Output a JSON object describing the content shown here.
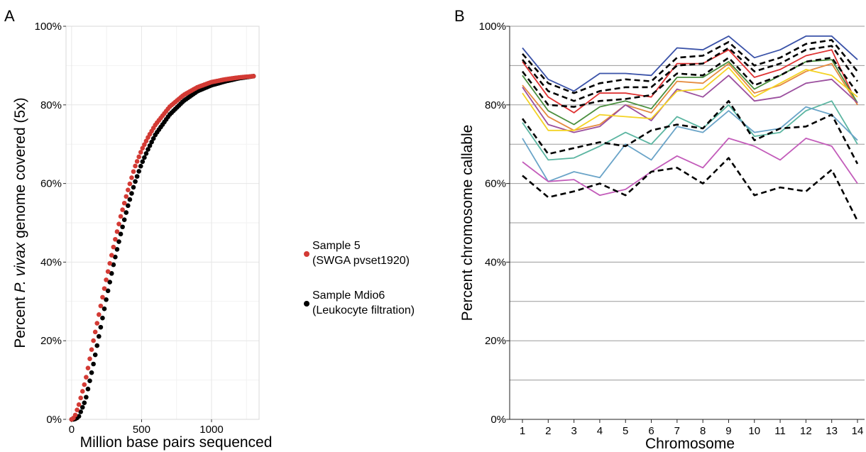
{
  "chart_data": [
    {
      "panel": "A",
      "type": "scatter",
      "xlabel": "Million base pairs sequenced",
      "ylabel_prefix": "Percent ",
      "ylabel_italic": "P. vivax",
      "ylabel_suffix": " genome covered (5x)",
      "xlim": [
        -40,
        1340
      ],
      "ylim": [
        0,
        100
      ],
      "x_ticks": [
        0,
        500,
        1000
      ],
      "x_tick_labels": [
        "0",
        "500",
        "1000"
      ],
      "y_ticks": [
        0,
        20,
        40,
        60,
        80,
        100
      ],
      "y_tick_labels": [
        "0%",
        "20%",
        "40%",
        "60%",
        "80%",
        "100%"
      ],
      "grid": true,
      "legend_position": "right",
      "series": [
        {
          "name_lines": [
            "Sample 5",
            "(SWGA pvset1920)"
          ],
          "color": "#d33a34",
          "curve": {
            "x": [
              0,
              20,
              50,
              100,
              150,
              200,
              250,
              300,
              350,
              400,
              450,
              500,
              550,
              600,
              700,
              800,
              900,
              1000,
              1100,
              1200,
              1300
            ],
            "y": [
              0,
              0.5,
              3.5,
              10,
              19,
              27.5,
              36,
              44,
              51.5,
              58,
              64,
              68.5,
              72,
              75,
              79.5,
              82.5,
              84.5,
              85.8,
              86.5,
              87,
              87.3
            ]
          }
        },
        {
          "name_lines": [
            "Sample Mdio6",
            "(Leukocyte filtration)"
          ],
          "color": "#000000",
          "curve": {
            "x": [
              0,
              20,
              50,
              100,
              150,
              200,
              250,
              300,
              350,
              400,
              450,
              500,
              550,
              600,
              700,
              800,
              900,
              1000,
              1100,
              1200,
              1300
            ],
            "y": [
              0,
              0,
              0.6,
              5,
              13,
              22,
              31,
              39.5,
              47,
              54,
              60,
              65,
              69,
              72.5,
              77.5,
              81,
              83.5,
              85,
              86,
              86.8,
              87.3
            ]
          }
        }
      ]
    },
    {
      "panel": "B",
      "type": "line",
      "xlabel": "Chromosome",
      "ylabel": "Percent chromosome callable",
      "categories": [
        "1",
        "2",
        "3",
        "4",
        "5",
        "6",
        "7",
        "8",
        "9",
        "10",
        "11",
        "12",
        "13",
        "14"
      ],
      "ylim": [
        0,
        100
      ],
      "y_ticks": [
        0,
        20,
        40,
        60,
        80,
        100
      ],
      "y_tick_labels": [
        "0%",
        "20%",
        "40%",
        "60%",
        "80%",
        "100%"
      ],
      "grid": true,
      "series": [
        {
          "color": "#3a52a8",
          "dashed": false,
          "values": [
            94.5,
            86.5,
            83.5,
            88,
            88,
            87.5,
            94.5,
            94,
            97.5,
            92,
            94,
            97.5,
            97.5,
            91.5
          ]
        },
        {
          "color": "#000000",
          "dashed": true,
          "values": [
            93,
            85.5,
            83,
            85.5,
            86.5,
            86,
            92,
            92.5,
            96,
            90,
            92,
            95.5,
            96.5,
            88.5
          ]
        },
        {
          "color": "#000000",
          "dashed": true,
          "values": [
            91.5,
            83.5,
            81,
            83.5,
            84.5,
            84.5,
            90,
            90.5,
            94.5,
            88.5,
            90.5,
            94,
            95,
            86
          ]
        },
        {
          "color": "#df3232",
          "dashed": false,
          "values": [
            91,
            82,
            78,
            83,
            83,
            82,
            90.5,
            90.5,
            94,
            87,
            89,
            92.5,
            94,
            80
          ]
        },
        {
          "color": "#000000",
          "dashed": true,
          "values": [
            88.5,
            80,
            79.5,
            81,
            81.5,
            82.5,
            88,
            87.5,
            92,
            85,
            87.5,
            91,
            92,
            83
          ]
        },
        {
          "color": "#4b8f3e",
          "dashed": false,
          "values": [
            87.5,
            78.5,
            75,
            79.5,
            81,
            79,
            87,
            87,
            91,
            84,
            87.5,
            91,
            91.5,
            80.5
          ]
        },
        {
          "color": "#e58b3e",
          "dashed": false,
          "values": [
            85,
            77,
            73.5,
            75,
            80,
            78,
            86,
            85.5,
            90.5,
            83,
            85,
            88.5,
            90.5,
            80
          ]
        },
        {
          "color": "#9b4f9e",
          "dashed": false,
          "values": [
            84.5,
            75,
            73,
            74.5,
            80,
            76,
            84,
            82,
            87.5,
            81,
            82,
            85.5,
            86.5,
            80.5
          ]
        },
        {
          "color": "#f4d324",
          "dashed": false,
          "values": [
            83,
            73.5,
            73.5,
            77.5,
            77,
            76.5,
            83.5,
            84,
            89.5,
            82,
            85.5,
            89,
            87.5,
            82
          ]
        },
        {
          "color": "#000000",
          "dashed": true,
          "values": [
            76.5,
            67.5,
            69,
            70.5,
            69.5,
            73.5,
            75,
            74,
            81,
            71,
            74,
            74.5,
            77.5,
            65
          ]
        },
        {
          "color": "#5bb5a1",
          "dashed": false,
          "values": [
            75.5,
            66,
            66.5,
            69.5,
            73,
            70,
            77,
            74,
            80,
            72,
            73,
            78.5,
            81,
            70
          ]
        },
        {
          "color": "#6aa4c8",
          "dashed": false,
          "values": [
            71.5,
            60.5,
            63,
            61.5,
            70,
            66,
            74.5,
            73,
            78.5,
            73,
            74,
            79.5,
            77.5,
            71
          ]
        },
        {
          "color": "#c35cba",
          "dashed": false,
          "values": [
            65.5,
            60.5,
            61,
            57,
            58.5,
            63,
            67,
            64,
            71.5,
            69.5,
            66,
            71.5,
            69.5,
            60
          ]
        },
        {
          "color": "#000000",
          "dashed": true,
          "values": [
            62,
            56.5,
            58,
            60,
            57,
            63,
            64,
            60,
            66.5,
            57,
            59,
            58,
            63.5,
            50.5
          ]
        }
      ]
    }
  ]
}
